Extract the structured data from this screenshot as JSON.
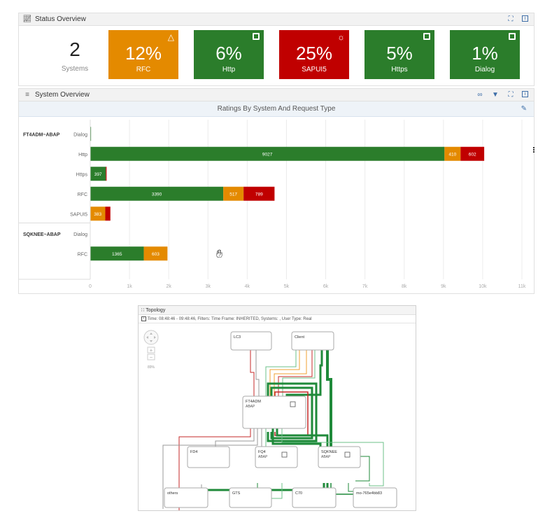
{
  "status_overview": {
    "title": "Status Overview",
    "systems_count": "2",
    "systems_label": "Systems",
    "tiles": [
      {
        "pct": "12%",
        "label": "RFC",
        "color": "#e48a00",
        "icon": "warning-triangle-icon"
      },
      {
        "pct": "6%",
        "label": "Http",
        "color": "#2b7d2b",
        "icon": "square-icon"
      },
      {
        "pct": "25%",
        "label": "SAPUI5",
        "color": "#c00000",
        "icon": "alarm-icon"
      },
      {
        "pct": "5%",
        "label": "Https",
        "color": "#2b7d2b",
        "icon": "square-icon"
      },
      {
        "pct": "1%",
        "label": "Dialog",
        "color": "#2b7d2b",
        "icon": "square-icon"
      }
    ]
  },
  "system_overview": {
    "title": "System Overview"
  },
  "chart_data": {
    "type": "bar",
    "orientation": "horizontal",
    "stacked": true,
    "title": "Ratings By System And Request Type",
    "groups": [
      {
        "system": "FT4ADM~ABAP",
        "rows": [
          {
            "label": "Dialog",
            "values": [
              20,
              0,
              0
            ],
            "labels": [
              "",
              "",
              ""
            ]
          },
          {
            "label": "Http",
            "values": [
              9027,
              410,
              602
            ],
            "labels": [
              "9027",
              "410",
              "602"
            ]
          },
          {
            "label": "Https",
            "values": [
              397,
              0,
              20
            ],
            "labels": [
              "397",
              "",
              ""
            ]
          },
          {
            "label": "RFC",
            "values": [
              3390,
              517,
              789
            ],
            "labels": [
              "3390",
              "517",
              "789"
            ]
          },
          {
            "label": "SAPUI5",
            "values": [
              0,
              383,
              130
            ],
            "labels": [
              "",
              "383",
              ""
            ]
          }
        ]
      },
      {
        "system": "SQKNEE~ABAP",
        "rows": [
          {
            "label": "Dialog",
            "values": [
              0,
              0,
              0
            ],
            "labels": [
              "",
              "",
              ""
            ]
          },
          {
            "label": "RFC",
            "values": [
              1365,
              603,
              0
            ],
            "labels": [
              "1365",
              "603",
              ""
            ]
          }
        ]
      }
    ],
    "series_colors": [
      "#2b7d2b",
      "#e48a00",
      "#c00000"
    ],
    "x_ticks": [
      0,
      1000,
      2000,
      3000,
      4000,
      5000,
      6000,
      7000,
      8000,
      9000,
      10000,
      11000
    ],
    "x_tick_labels": [
      "0",
      "1k",
      "2k",
      "3k",
      "4k",
      "5k",
      "6k",
      "7k",
      "8k",
      "9k",
      "10k",
      "11k"
    ],
    "xlim": [
      0,
      11000
    ],
    "grid": true
  },
  "topology": {
    "title": "Topology",
    "info": "Time: 08:48:46 - 09:48:46, Filters: Time Frame: INHERITED, Systems: , User Type: Real",
    "zoom": "89%",
    "nodes": [
      {
        "id": "lc3",
        "label": "LC3",
        "sub": ""
      },
      {
        "id": "client",
        "label": "Client",
        "sub": ""
      },
      {
        "id": "ft4adm",
        "label": "FT4ADM",
        "sub": "ABAP"
      },
      {
        "id": "fd4",
        "label": "FD4",
        "sub": ""
      },
      {
        "id": "fq4",
        "label": "FQ4",
        "sub": "ABAP"
      },
      {
        "id": "sqknee",
        "label": "SQKNEE",
        "sub": "ABAP"
      },
      {
        "id": "others",
        "label": "others",
        "sub": ""
      },
      {
        "id": "gts",
        "label": "GTS",
        "sub": ""
      },
      {
        "id": "c70",
        "label": "C70",
        "sub": ""
      },
      {
        "id": "mo",
        "label": "mo-765e4bb83",
        "sub": ""
      }
    ]
  }
}
